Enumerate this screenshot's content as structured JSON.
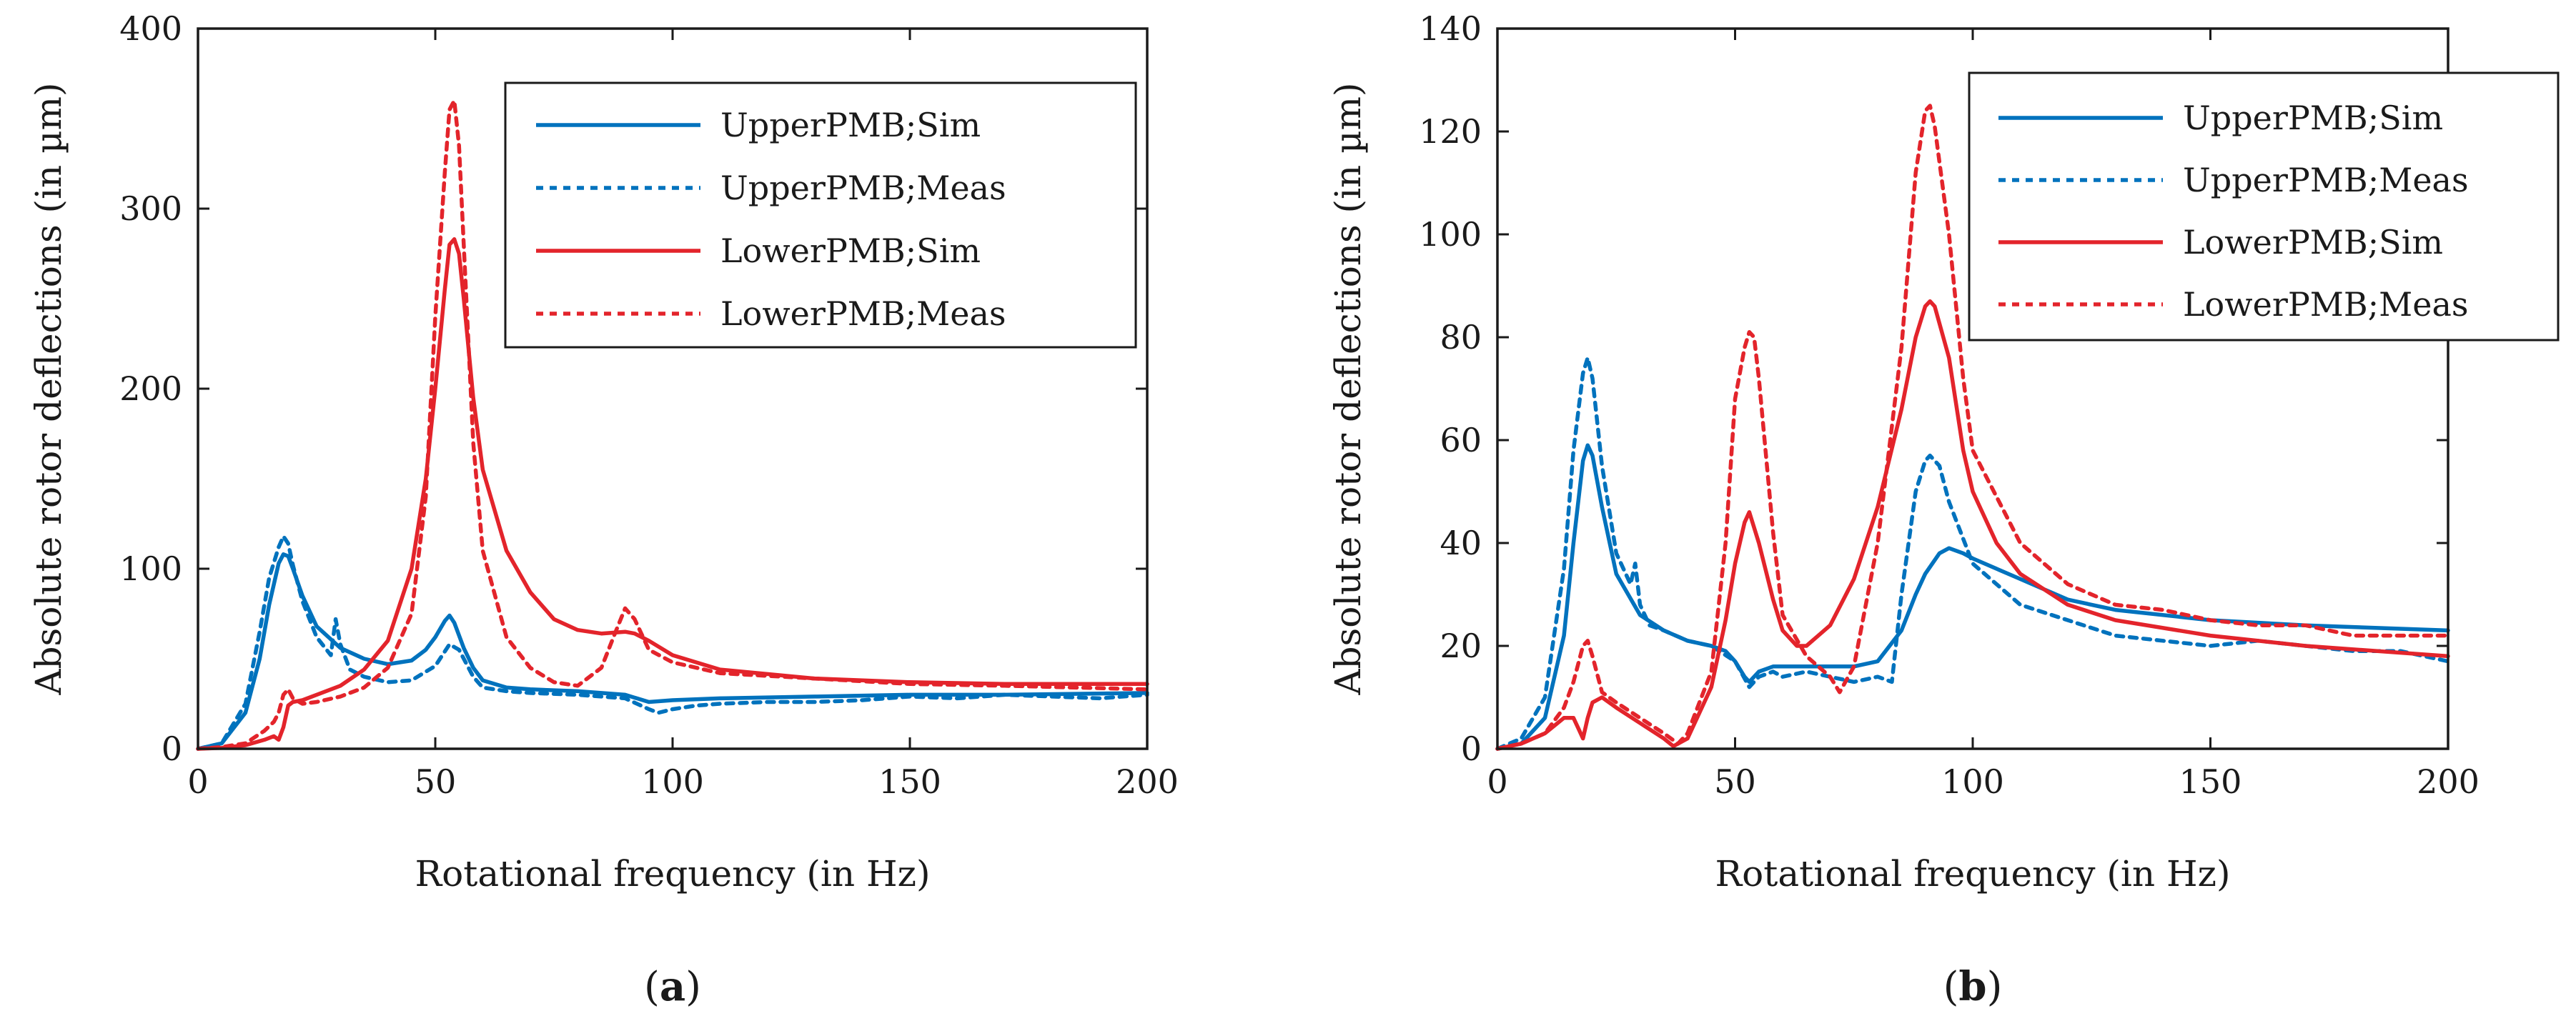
{
  "chart_data": [
    {
      "type": "line",
      "caption_letter": "a",
      "xlabel": "Rotational frequency (in Hz)",
      "ylabel": "Absolute rotor deflections (in µm)",
      "xlim": [
        0,
        200
      ],
      "ylim": [
        0,
        400
      ],
      "xticks": [
        0,
        50,
        100,
        150,
        200
      ],
      "yticks": [
        0,
        100,
        200,
        300,
        400
      ],
      "grid": false,
      "legend_position": "top-right",
      "series": [
        {
          "name": "UpperPMB;Sim",
          "color": "#0072BD",
          "style": "solid",
          "x": [
            0,
            5,
            10,
            13,
            15,
            17,
            18,
            19,
            20,
            22,
            25,
            30,
            35,
            40,
            45,
            48,
            50,
            52,
            53,
            54,
            56,
            58,
            60,
            65,
            70,
            80,
            90,
            95,
            100,
            110,
            130,
            150,
            170,
            200
          ],
          "y": [
            0,
            3,
            20,
            50,
            80,
            103,
            108,
            107,
            100,
            85,
            68,
            56,
            50,
            47,
            49,
            55,
            62,
            71,
            74,
            70,
            56,
            45,
            38,
            34,
            33,
            32,
            30,
            26,
            27,
            28,
            29,
            30,
            30,
            31
          ]
        },
        {
          "name": "UpperPMB;Meas",
          "color": "#0072BD",
          "style": "dotted",
          "x": [
            0,
            5,
            10,
            13,
            15,
            17,
            18,
            19,
            20,
            22,
            25,
            28,
            29,
            30,
            32,
            35,
            40,
            45,
            50,
            53,
            55,
            58,
            60,
            65,
            70,
            80,
            90,
            95,
            97,
            100,
            105,
            110,
            120,
            130,
            140,
            150,
            160,
            170,
            180,
            190,
            200
          ],
          "y": [
            0,
            3,
            25,
            65,
            95,
            112,
            118,
            114,
            102,
            82,
            62,
            52,
            72,
            58,
            44,
            40,
            37,
            38,
            46,
            58,
            55,
            40,
            34,
            32,
            31,
            30,
            28,
            22,
            20,
            22,
            24,
            25,
            26,
            26,
            27,
            29,
            28,
            30,
            29,
            28,
            30
          ]
        },
        {
          "name": "LowerPMB;Sim",
          "color": "#E3242B",
          "style": "solid",
          "x": [
            0,
            5,
            10,
            14,
            16,
            17,
            18,
            19,
            20,
            22,
            25,
            30,
            35,
            40,
            45,
            48,
            50,
            52,
            53,
            54,
            55,
            56,
            58,
            60,
            65,
            70,
            75,
            80,
            85,
            90,
            92,
            95,
            100,
            110,
            130,
            150,
            170,
            200
          ],
          "y": [
            0,
            0.5,
            2,
            5,
            7,
            5,
            12,
            24,
            26,
            27,
            30,
            35,
            44,
            60,
            100,
            150,
            200,
            255,
            280,
            283,
            275,
            250,
            195,
            155,
            110,
            87,
            72,
            66,
            64,
            65,
            64,
            60,
            52,
            44,
            39,
            37,
            36,
            36
          ]
        },
        {
          "name": "LowerPMB;Meas",
          "color": "#E3242B",
          "style": "dotted",
          "x": [
            0,
            5,
            10,
            14,
            16,
            17,
            18,
            19,
            20,
            22,
            25,
            30,
            35,
            40,
            45,
            48,
            50,
            52,
            53,
            54,
            55,
            56,
            58,
            60,
            65,
            70,
            75,
            80,
            85,
            88,
            90,
            92,
            95,
            100,
            110,
            130,
            150,
            170,
            200
          ],
          "y": [
            0,
            1,
            3,
            10,
            15,
            20,
            30,
            33,
            28,
            25,
            26,
            29,
            34,
            45,
            75,
            140,
            240,
            320,
            355,
            360,
            335,
            280,
            170,
            110,
            62,
            45,
            37,
            35,
            45,
            65,
            78,
            72,
            55,
            48,
            42,
            39,
            36,
            35,
            33
          ]
        }
      ]
    },
    {
      "type": "line",
      "caption_letter": "b",
      "xlabel": "Rotational frequency (in Hz)",
      "ylabel": "Absolute rotor deflections (in µm)",
      "xlim": [
        0,
        200
      ],
      "ylim": [
        0,
        140
      ],
      "xticks": [
        0,
        50,
        100,
        150,
        200
      ],
      "yticks": [
        0,
        20,
        40,
        60,
        80,
        100,
        120,
        140
      ],
      "grid": false,
      "legend_position": "top-right",
      "series": [
        {
          "name": "UpperPMB;Sim",
          "color": "#0072BD",
          "style": "solid",
          "x": [
            0,
            5,
            10,
            14,
            16,
            18,
            19,
            20,
            22,
            25,
            30,
            35,
            40,
            45,
            48,
            50,
            52,
            53,
            55,
            58,
            60,
            65,
            70,
            75,
            80,
            85,
            88,
            90,
            93,
            95,
            98,
            100,
            110,
            120,
            130,
            150,
            170,
            200
          ],
          "y": [
            0,
            1,
            6,
            22,
            40,
            56,
            59,
            57,
            47,
            34,
            26,
            23,
            21,
            20,
            19,
            17,
            14,
            13,
            15,
            16,
            16,
            16,
            16,
            16,
            17,
            23,
            30,
            34,
            38,
            39,
            38,
            37,
            33,
            29,
            27,
            25,
            24,
            23
          ]
        },
        {
          "name": "UpperPMB;Meas",
          "color": "#0072BD",
          "style": "dotted",
          "x": [
            0,
            5,
            10,
            14,
            16,
            18,
            19,
            20,
            22,
            25,
            28,
            29,
            30,
            32,
            35,
            40,
            45,
            50,
            53,
            55,
            58,
            60,
            65,
            70,
            75,
            80,
            83,
            85,
            88,
            90,
            91,
            93,
            95,
            100,
            110,
            120,
            130,
            140,
            150,
            160,
            170,
            180,
            190,
            200
          ],
          "y": [
            0,
            2,
            10,
            35,
            58,
            73,
            76,
            72,
            55,
            38,
            32,
            36,
            28,
            24,
            23,
            21,
            20,
            17,
            12,
            14,
            15,
            14,
            15,
            14,
            13,
            14,
            13,
            30,
            50,
            56,
            57,
            55,
            48,
            36,
            28,
            25,
            22,
            21,
            20,
            21,
            20,
            19,
            19,
            17
          ]
        },
        {
          "name": "LowerPMB;Sim",
          "color": "#E3242B",
          "style": "solid",
          "x": [
            0,
            5,
            10,
            14,
            16,
            17,
            18,
            19,
            20,
            22,
            25,
            30,
            35,
            37,
            40,
            45,
            48,
            50,
            52,
            53,
            55,
            58,
            60,
            63,
            65,
            70,
            75,
            80,
            85,
            88,
            90,
            91,
            92,
            95,
            98,
            100,
            105,
            110,
            120,
            130,
            150,
            170,
            200
          ],
          "y": [
            0,
            1,
            3,
            6,
            6,
            4,
            2,
            6,
            9,
            10,
            8,
            5,
            2,
            0.5,
            2,
            12,
            25,
            36,
            44,
            46,
            40,
            29,
            23,
            20,
            20,
            24,
            33,
            47,
            66,
            80,
            86,
            87,
            86,
            76,
            58,
            50,
            40,
            34,
            28,
            25,
            22,
            20,
            18
          ]
        },
        {
          "name": "LowerPMB;Meas",
          "color": "#E3242B",
          "style": "dotted",
          "x": [
            0,
            5,
            10,
            14,
            16,
            18,
            19,
            20,
            22,
            25,
            30,
            35,
            38,
            40,
            45,
            48,
            50,
            52,
            53,
            54,
            55,
            58,
            60,
            65,
            70,
            72,
            75,
            80,
            85,
            88,
            90,
            91,
            92,
            95,
            98,
            100,
            110,
            120,
            130,
            140,
            150,
            160,
            170,
            180,
            190,
            200
          ],
          "y": [
            0,
            1,
            3,
            8,
            13,
            20,
            21,
            18,
            11,
            9,
            6,
            3,
            1,
            3,
            15,
            40,
            68,
            78,
            81,
            80,
            72,
            42,
            26,
            18,
            14,
            11,
            16,
            40,
            78,
            112,
            124,
            125,
            121,
            100,
            72,
            58,
            40,
            32,
            28,
            27,
            25,
            24,
            24,
            22,
            22,
            22
          ]
        }
      ]
    }
  ]
}
